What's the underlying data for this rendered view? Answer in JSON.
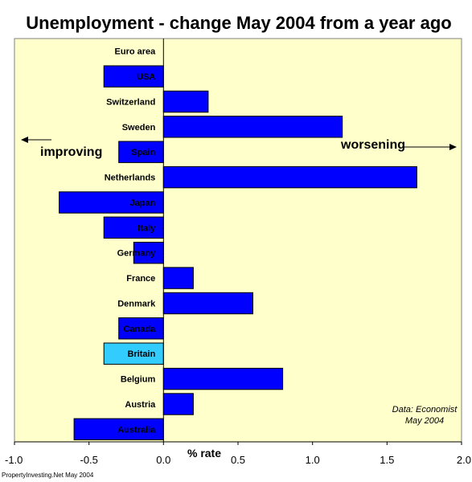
{
  "chart_data": {
    "type": "bar",
    "orientation": "horizontal",
    "title": "Unemployment - change May 2004 from a year ago",
    "xlabel": "% rate",
    "ylabel": "",
    "xlim": [
      -1.0,
      2.0
    ],
    "xticks": [
      "-1.0",
      "-0.5",
      "0.0",
      "0.5",
      "1.0",
      "1.5",
      "2.0"
    ],
    "xtick_values": [
      -1.0,
      -0.5,
      0.0,
      0.5,
      1.0,
      1.5,
      2.0
    ],
    "grid": false,
    "legend": "none",
    "plot_background": "#FFFFCC",
    "bar_color": "#0000FF",
    "highlight_color": "#33CCFF",
    "categories": [
      "Euro area",
      "USA",
      "Switzerland",
      "Sweden",
      "Spain",
      "Netherlands",
      "Japan",
      "Italy",
      "Germany",
      "France",
      "Denmark",
      "Canada",
      "Britain",
      "Belgium",
      "Austria",
      "Australia"
    ],
    "values": [
      0.0,
      -0.4,
      0.3,
      1.2,
      -0.3,
      1.7,
      -0.7,
      -0.4,
      -0.2,
      0.2,
      0.6,
      -0.3,
      -0.4,
      0.8,
      0.2,
      -0.6
    ],
    "highlight": "Britain",
    "annotations": {
      "improving": "improving",
      "worsening": "worsening",
      "source_line1": "Data: Economist",
      "source_line2": "May 2004"
    },
    "footer": "PropertyInvesting.Net May 2004"
  }
}
